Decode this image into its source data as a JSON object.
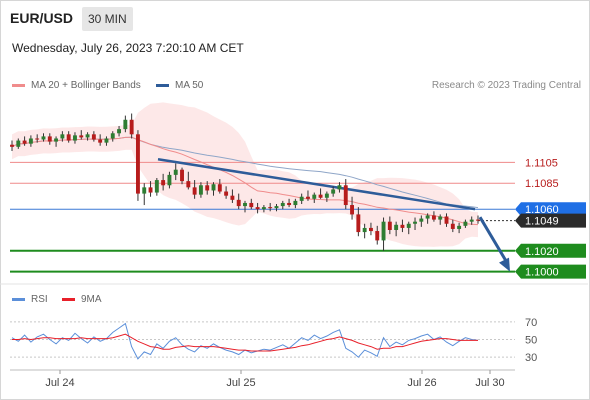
{
  "header": {
    "symbol": "EUR/USD",
    "timeframe": "30 MIN",
    "datetime": "Wednesday, July 26, 2023 7:20:10 AM CET"
  },
  "legend": {
    "ma20": {
      "label": "MA 20 + Bollinger Bands",
      "color": "#f08c8c"
    },
    "ma50": {
      "label": "MA 50",
      "color": "#2e5c99"
    },
    "rsi": {
      "label": "RSI",
      "color": "#5b8fd9"
    },
    "rsi_ma": {
      "label": "9MA",
      "color": "#e8202a"
    },
    "credit": "Research © 2023 Trading Central"
  },
  "colors": {
    "up": "#2e7d32",
    "down": "#b71c1c",
    "support": "#1e8c1e",
    "resistance": "#ef8a8a",
    "pivot": "#3a78d6",
    "trend": "#2e5c99",
    "band": "#fde4e4"
  },
  "chart_data": [
    {
      "type": "candlestick",
      "x_axis": {
        "ticks": [
          "Jul 24",
          "Jul 25",
          "Jul 26",
          "Jul 30"
        ]
      },
      "y_range": [
        1.099,
        1.1165
      ],
      "levels": [
        {
          "value": "1.1105",
          "kind": "resistance"
        },
        {
          "value": "1.1085",
          "kind": "resistance"
        },
        {
          "value": "1.1060",
          "kind": "pivot"
        },
        {
          "value": "1.1020",
          "kind": "support"
        },
        {
          "value": "1.1000",
          "kind": "support"
        }
      ],
      "last_price": "1.1049",
      "trendline": [
        [
          1.1108,
          1.106
        ]
      ],
      "forecast_arrow": {
        "from": 1.106,
        "to": 1.1
      },
      "ohlc": [
        [
          1.1122,
          1.1126,
          1.1116,
          1.112
        ],
        [
          1.112,
          1.1128,
          1.1118,
          1.1126
        ],
        [
          1.1126,
          1.113,
          1.1121,
          1.1123
        ],
        [
          1.1123,
          1.1131,
          1.112,
          1.1128
        ],
        [
          1.1128,
          1.1132,
          1.1124,
          1.1127
        ],
        [
          1.1127,
          1.1133,
          1.1125,
          1.113
        ],
        [
          1.113,
          1.1133,
          1.1122,
          1.1125
        ],
        [
          1.1125,
          1.113,
          1.112,
          1.1128
        ],
        [
          1.1128,
          1.1135,
          1.1125,
          1.1132
        ],
        [
          1.1132,
          1.1135,
          1.1124,
          1.1126
        ],
        [
          1.1126,
          1.1134,
          1.1123,
          1.1131
        ],
        [
          1.1131,
          1.1136,
          1.1127,
          1.1129
        ],
        [
          1.1129,
          1.1134,
          1.1126,
          1.1132
        ],
        [
          1.1132,
          1.1135,
          1.1125,
          1.1127
        ],
        [
          1.1127,
          1.1132,
          1.1121,
          1.1124
        ],
        [
          1.1124,
          1.113,
          1.1121,
          1.1128
        ],
        [
          1.1128,
          1.1135,
          1.1125,
          1.1133
        ],
        [
          1.1133,
          1.114,
          1.113,
          1.1137
        ],
        [
          1.1137,
          1.115,
          1.1134,
          1.1146
        ],
        [
          1.1146,
          1.1152,
          1.1128,
          1.1132
        ],
        [
          1.1132,
          1.1136,
          1.1068,
          1.1075
        ],
        [
          1.1075,
          1.1085,
          1.1064,
          1.1081
        ],
        [
          1.1081,
          1.1087,
          1.1072,
          1.1076
        ],
        [
          1.1076,
          1.109,
          1.1073,
          1.1088
        ],
        [
          1.1088,
          1.1094,
          1.1078,
          1.1083
        ],
        [
          1.1083,
          1.1096,
          1.108,
          1.1093
        ],
        [
          1.1093,
          1.1104,
          1.1088,
          1.1098
        ],
        [
          1.1098,
          1.11,
          1.1084,
          1.1087
        ],
        [
          1.1087,
          1.1096,
          1.1079,
          1.1081
        ],
        [
          1.1081,
          1.1088,
          1.107,
          1.1074
        ],
        [
          1.1074,
          1.1086,
          1.1071,
          1.1083
        ],
        [
          1.1083,
          1.1087,
          1.1074,
          1.1078
        ],
        [
          1.1078,
          1.1086,
          1.1073,
          1.1084
        ],
        [
          1.1084,
          1.1089,
          1.1075,
          1.1077
        ],
        [
          1.1077,
          1.1082,
          1.107,
          1.1073
        ],
        [
          1.1073,
          1.1079,
          1.1066,
          1.1069
        ],
        [
          1.1069,
          1.1075,
          1.106,
          1.1063
        ],
        [
          1.1063,
          1.1068,
          1.1057,
          1.1066
        ],
        [
          1.1066,
          1.107,
          1.106,
          1.1062
        ],
        [
          1.1062,
          1.1066,
          1.1056,
          1.106
        ],
        [
          1.106,
          1.1064,
          1.1057,
          1.1062
        ],
        [
          1.1062,
          1.1066,
          1.1058,
          1.1061
        ],
        [
          1.1061,
          1.1065,
          1.1058,
          1.1063
        ],
        [
          1.1063,
          1.1068,
          1.106,
          1.1066
        ],
        [
          1.1066,
          1.107,
          1.1062,
          1.1064
        ],
        [
          1.1064,
          1.107,
          1.1061,
          1.1068
        ],
        [
          1.1068,
          1.1075,
          1.1065,
          1.1072
        ],
        [
          1.1072,
          1.1078,
          1.1068,
          1.107
        ],
        [
          1.107,
          1.1076,
          1.1066,
          1.1074
        ],
        [
          1.1074,
          1.108,
          1.107,
          1.1071
        ],
        [
          1.1071,
          1.1077,
          1.1067,
          1.1075
        ],
        [
          1.1075,
          1.1082,
          1.1072,
          1.1079
        ],
        [
          1.1079,
          1.1086,
          1.1076,
          1.1083
        ],
        [
          1.1083,
          1.1089,
          1.106,
          1.1064
        ],
        [
          1.1064,
          1.1072,
          1.105,
          1.1055
        ],
        [
          1.1055,
          1.1062,
          1.1034,
          1.1038
        ],
        [
          1.1038,
          1.1046,
          1.1032,
          1.1042
        ],
        [
          1.1042,
          1.1047,
          1.1035,
          1.1039
        ],
        [
          1.1039,
          1.1044,
          1.1026,
          1.103
        ],
        [
          1.103,
          1.1052,
          1.102,
          1.1048
        ],
        [
          1.1048,
          1.1053,
          1.1036,
          1.104
        ],
        [
          1.104,
          1.1048,
          1.1034,
          1.1045
        ],
        [
          1.1045,
          1.105,
          1.1038,
          1.1042
        ],
        [
          1.1042,
          1.1048,
          1.1036,
          1.1046
        ],
        [
          1.1046,
          1.1052,
          1.104,
          1.1048
        ],
        [
          1.1048,
          1.1054,
          1.1043,
          1.1051
        ],
        [
          1.1051,
          1.1056,
          1.1046,
          1.1054
        ],
        [
          1.1054,
          1.1058,
          1.1048,
          1.105
        ],
        [
          1.105,
          1.1055,
          1.1045,
          1.1053
        ],
        [
          1.1053,
          1.1056,
          1.1043,
          1.1046
        ],
        [
          1.1046,
          1.105,
          1.1038,
          1.1041
        ],
        [
          1.1041,
          1.1047,
          1.1037,
          1.1044
        ],
        [
          1.1044,
          1.105,
          1.1042,
          1.1048
        ],
        [
          1.1048,
          1.1053,
          1.1045,
          1.105
        ],
        [
          1.105,
          1.1054,
          1.1046,
          1.1049
        ]
      ]
    },
    {
      "type": "line",
      "x_axis": {
        "ticks": [
          "Jul 24",
          "Jul 25",
          "Jul 26",
          "Jul 30"
        ]
      },
      "y_axis": {
        "ticks": [
          "70",
          "50",
          "30"
        ],
        "range": [
          20,
          80
        ]
      },
      "series": [
        {
          "name": "RSI",
          "values": [
            52,
            48,
            55,
            47,
            53,
            56,
            50,
            45,
            52,
            49,
            57,
            51,
            46,
            53,
            48,
            51,
            58,
            63,
            68,
            42,
            28,
            36,
            33,
            45,
            40,
            48,
            52,
            44,
            39,
            36,
            43,
            40,
            45,
            41,
            38,
            36,
            33,
            38,
            35,
            37,
            39,
            38,
            41,
            44,
            40,
            46,
            52,
            49,
            55,
            51,
            54,
            58,
            61,
            40,
            36,
            30,
            38,
            35,
            31,
            52,
            42,
            47,
            44,
            49,
            51,
            54,
            56,
            50,
            53,
            47,
            43,
            48,
            52,
            50,
            49
          ]
        },
        {
          "name": "9MA",
          "values": [
            50,
            50,
            51,
            50,
            51,
            52,
            52,
            51,
            51,
            51,
            51,
            52,
            51,
            51,
            51,
            51,
            52,
            54,
            56,
            52,
            48,
            45,
            42,
            41,
            39,
            39,
            41,
            42,
            43,
            42,
            42,
            42,
            42,
            41,
            40,
            39,
            38,
            38,
            37,
            37,
            37,
            37,
            38,
            39,
            40,
            41,
            43,
            44,
            46,
            48,
            50,
            51,
            53,
            51,
            49,
            46,
            44,
            42,
            39,
            40,
            40,
            42,
            42,
            44,
            46,
            48,
            49,
            50,
            51,
            51,
            50,
            49,
            49,
            49,
            49
          ]
        }
      ]
    }
  ]
}
